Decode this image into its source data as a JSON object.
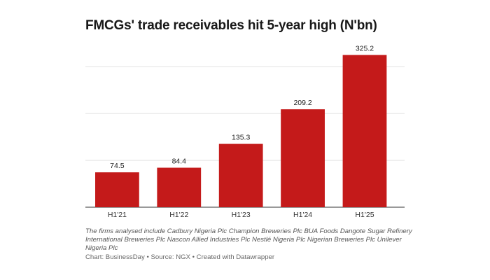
{
  "chart_data": {
    "type": "bar",
    "title": "FMCGs' trade receivables hit 5-year high (N'bn)",
    "categories": [
      "H1'21",
      "H1'22",
      "H1'23",
      "H1'24",
      "H1'25"
    ],
    "values": [
      74.5,
      84.4,
      135.3,
      209.2,
      325.2
    ],
    "xlabel": "",
    "ylabel": "",
    "ylim": [
      0,
      350
    ],
    "grid": true,
    "bar_color": "#c41a1a",
    "note": "The firms analysed include Cadbury Nigeria Plc Champion Breweries Plc BUA Foods Dangote Sugar Refinery International Breweries Plc Nascon Allied Industries Plc Nestlé Nigeria Plc Nigerian Breweries Plc Unilever Nigeria Plc",
    "source": "Chart: BusinessDay • Source: NGX • Created with Datawrapper"
  }
}
